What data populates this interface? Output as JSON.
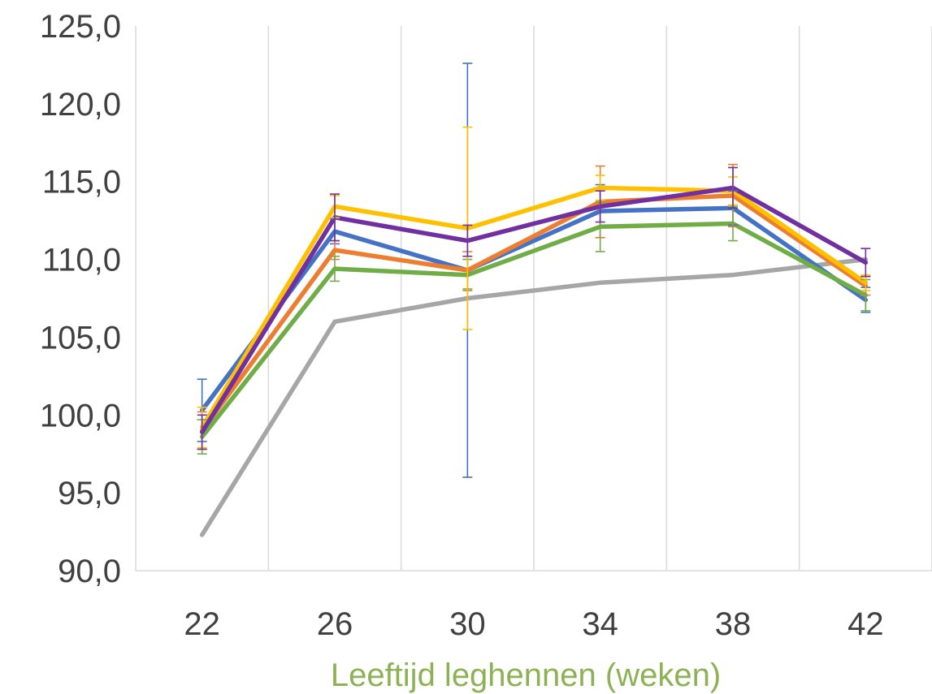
{
  "chart_data": {
    "type": "line",
    "title": "",
    "xlabel": "Leeftijd leghennen (weken)",
    "ylabel": "",
    "xlabel_color": "#8db255",
    "categories": [
      "22",
      "26",
      "30",
      "34",
      "38",
      "42"
    ],
    "ylim": [
      90,
      125
    ],
    "yticks": [
      90,
      95,
      100,
      105,
      110,
      115,
      120,
      125
    ],
    "y_tick_format": "comma-1-decimal",
    "grid": {
      "vertical": true,
      "horizontal": false
    },
    "legend": "none",
    "series": [
      {
        "color": "#a6a6a6",
        "values": [
          92.3,
          106.0,
          107.5,
          108.5,
          109.0,
          110.0
        ],
        "errors": null
      },
      {
        "color": "#4472c4",
        "values": [
          100.3,
          111.8,
          109.3,
          113.1,
          113.3,
          107.4
        ],
        "errors": [
          2.0,
          0.8,
          13.3,
          1.7,
          1.1,
          0.8
        ]
      },
      {
        "color": "#ed7d31",
        "values": [
          99.0,
          110.6,
          109.3,
          113.7,
          114.1,
          108.3
        ],
        "errors": [
          1.2,
          0.6,
          1.2,
          2.3,
          2.0,
          0.6
        ]
      },
      {
        "color": "#70ad47",
        "values": [
          98.6,
          109.4,
          109.0,
          112.1,
          112.3,
          107.7
        ],
        "errors": [
          1.1,
          0.8,
          1.0,
          1.6,
          1.1,
          1.0
        ]
      },
      {
        "color": "#ffc000",
        "values": [
          99.2,
          113.4,
          112.0,
          114.6,
          114.4,
          108.5
        ],
        "errors": [
          1.3,
          0.7,
          6.5,
          0.8,
          0.9,
          0.5
        ]
      },
      {
        "color": "#7030a0",
        "values": [
          98.9,
          112.7,
          111.2,
          113.4,
          114.6,
          109.8
        ],
        "errors": [
          1.1,
          1.5,
          1.0,
          1.0,
          1.3,
          0.9
        ]
      }
    ]
  }
}
